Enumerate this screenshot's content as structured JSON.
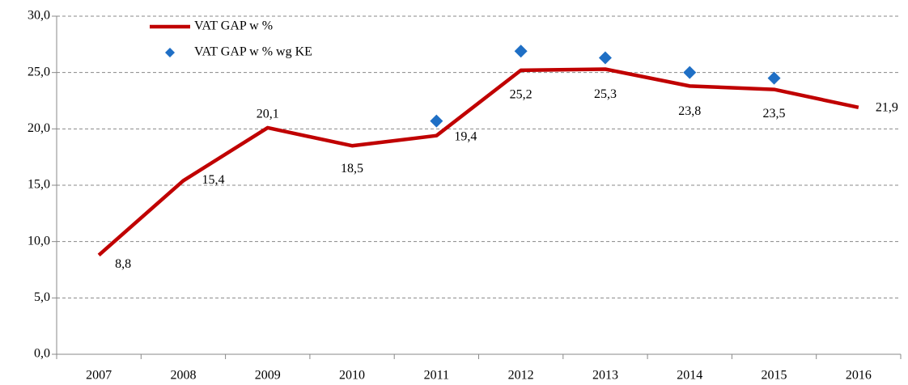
{
  "chart_data": {
    "type": "line",
    "categories": [
      "2007",
      "2008",
      "2009",
      "2010",
      "2011",
      "2012",
      "2013",
      "2014",
      "2015",
      "2016"
    ],
    "series": [
      {
        "name": "VAT GAP w %",
        "type": "line",
        "color": "#c00000",
        "values": [
          8.8,
          15.4,
          20.1,
          18.5,
          19.4,
          25.2,
          25.3,
          23.8,
          23.5,
          21.9
        ],
        "value_labels": [
          "8,8",
          "15,4",
          "20,1",
          "18,5",
          "19,4",
          "25,2",
          "25,3",
          "23,8",
          "23,5",
          "21,9"
        ]
      },
      {
        "name": "VAT GAP w % wg KE",
        "type": "scatter",
        "color": "#1f6fc5",
        "values": [
          null,
          null,
          null,
          null,
          20.7,
          26.9,
          26.3,
          25.0,
          24.5,
          null
        ]
      }
    ],
    "ylim": [
      0,
      30
    ],
    "yticks": [
      {
        "value": 0,
        "label": "0,0"
      },
      {
        "value": 5,
        "label": "5,0"
      },
      {
        "value": 10,
        "label": "10,0"
      },
      {
        "value": 15,
        "label": "15,0"
      },
      {
        "value": 20,
        "label": "20,0"
      },
      {
        "value": 25,
        "label": "25,0"
      },
      {
        "value": 30,
        "label": "30,0"
      }
    ],
    "grid": true
  }
}
